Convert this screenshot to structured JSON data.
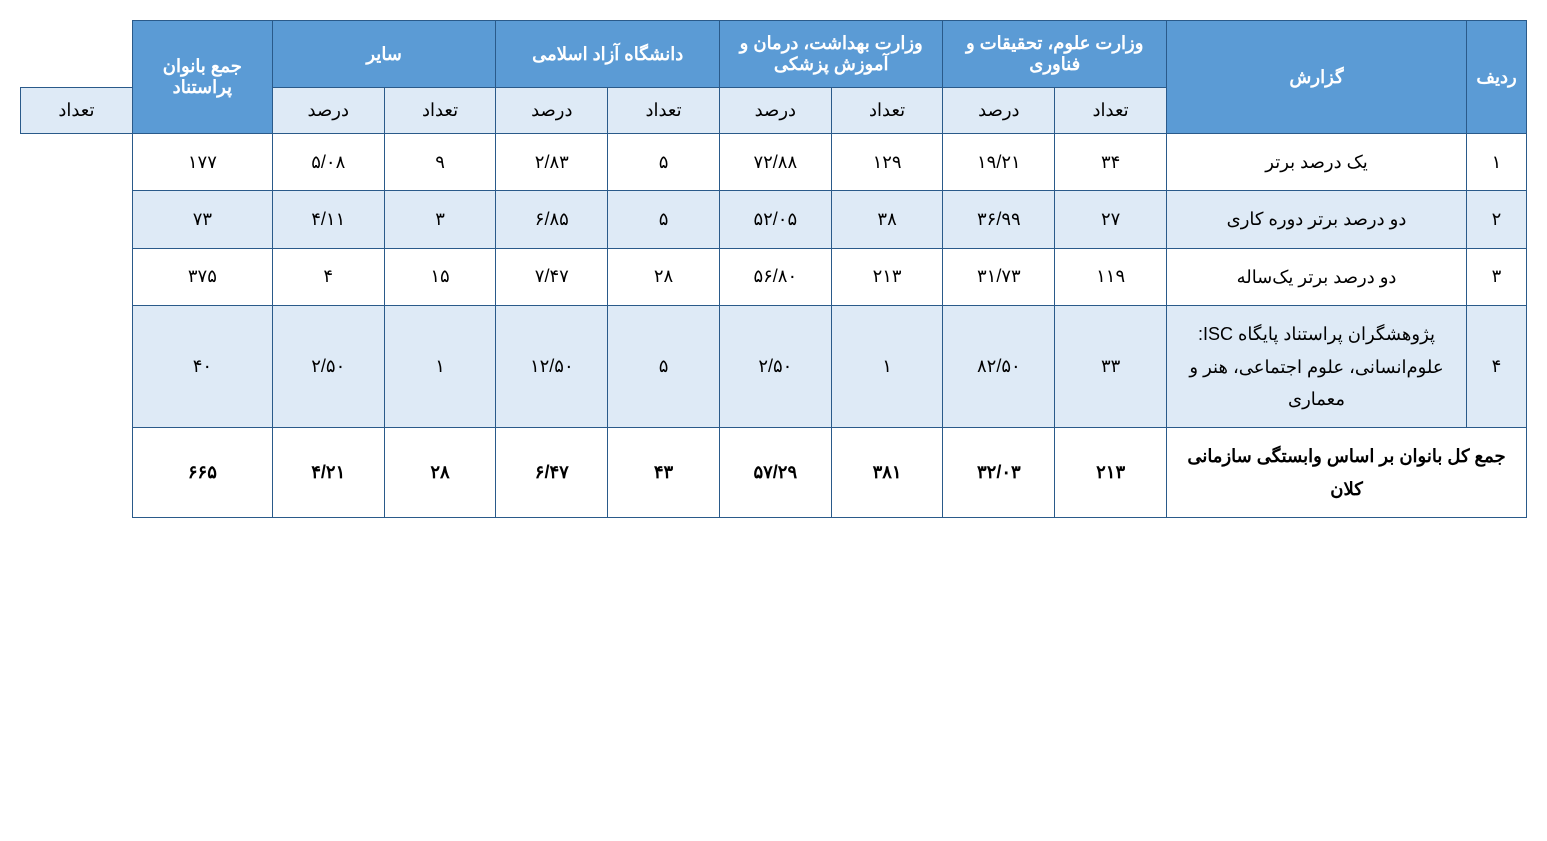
{
  "colors": {
    "header_bg": "#5b9bd5",
    "header_text": "#ffffff",
    "subheader_bg": "#deeaf6",
    "row_alt_bg": "#deeaf6",
    "row_bg": "#ffffff",
    "border": "#2a5a8a",
    "text": "#000000"
  },
  "typography": {
    "font_family": "Tahoma",
    "cell_fontsize": 18,
    "header_fontsize": 18
  },
  "table": {
    "headers": {
      "radif": "ردیف",
      "gozaresh": "گزارش",
      "vezarat_oloom": "وزارت علوم، تحقیقات و فناوری",
      "vezarat_behdasht": "وزارت بهداشت، درمان و آموزش پزشکی",
      "daneshgah_azad": "دانشگاه آزاد اسلامی",
      "sayer": "سایر",
      "jame_banovan": "جمع بانوان پراستناد",
      "tedad": "تعداد",
      "darsad": "درصد"
    },
    "rows": [
      {
        "radif": "۱",
        "gozaresh": "یک درصد برتر",
        "oloom_tedad": "۳۴",
        "oloom_darsad": "۱۹/۲۱",
        "behdasht_tedad": "۱۲۹",
        "behdasht_darsad": "۷۲/۸۸",
        "azad_tedad": "۵",
        "azad_darsad": "۲/۸۳",
        "sayer_tedad": "۹",
        "sayer_darsad": "۵/۰۸",
        "jame": "۱۷۷",
        "alt": false
      },
      {
        "radif": "۲",
        "gozaresh": "دو درصد برتر دوره کاری",
        "oloom_tedad": "۲۷",
        "oloom_darsad": "۳۶/۹۹",
        "behdasht_tedad": "۳۸",
        "behdasht_darsad": "۵۲/۰۵",
        "azad_tedad": "۵",
        "azad_darsad": "۶/۸۵",
        "sayer_tedad": "۳",
        "sayer_darsad": "۴/۱۱",
        "jame": "۷۳",
        "alt": true
      },
      {
        "radif": "۳",
        "gozaresh": "دو درصد برتر یک‌ساله",
        "oloom_tedad": "۱۱۹",
        "oloom_darsad": "۳۱/۷۳",
        "behdasht_tedad": "۲۱۳",
        "behdasht_darsad": "۵۶/۸۰",
        "azad_tedad": "۲۸",
        "azad_darsad": "۷/۴۷",
        "sayer_tedad": "۱۵",
        "sayer_darsad": "۴",
        "jame": "۳۷۵",
        "alt": false
      },
      {
        "radif": "۴",
        "gozaresh": "پژوهشگران پراستناد پایگاه ISC: علوم‌انسانی، علوم اجتماعی، هنر و معماری",
        "oloom_tedad": "۳۳",
        "oloom_darsad": "۸۲/۵۰",
        "behdasht_tedad": "۱",
        "behdasht_darsad": "۲/۵۰",
        "azad_tedad": "۵",
        "azad_darsad": "۱۲/۵۰",
        "sayer_tedad": "۱",
        "sayer_darsad": "۲/۵۰",
        "jame": "۴۰",
        "alt": true
      }
    ],
    "total": {
      "label": "جمع کل بانوان بر اساس وابستگی سازمانی کلان",
      "oloom_tedad": "۲۱۳",
      "oloom_darsad": "۳۲/۰۳",
      "behdasht_tedad": "۳۸۱",
      "behdasht_darsad": "۵۷/۲۹",
      "azad_tedad": "۴۳",
      "azad_darsad": "۶/۴۷",
      "sayer_tedad": "۲۸",
      "sayer_darsad": "۴/۲۱",
      "jame": "۶۶۵"
    }
  }
}
